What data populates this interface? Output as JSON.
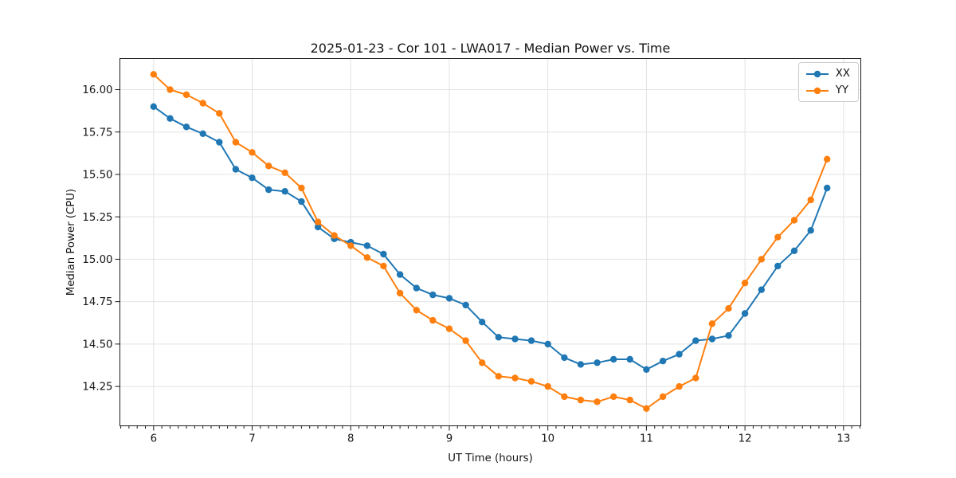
{
  "chart_data": {
    "type": "line",
    "title": "2025-01-23 - Cor 101 - LWA017 - Median Power vs. Time",
    "xlabel": "UT Time (hours)",
    "ylabel": "Median Power (CPU)",
    "xlim": [
      5.658,
      13.175
    ],
    "ylim": [
      14.018,
      16.183
    ],
    "grid": true,
    "grid_color": "#e2e2e2",
    "axis_color": "#1a1a1a",
    "legend_position": "upper-right",
    "x_ticks": [
      {
        "value": 6,
        "label": "6"
      },
      {
        "value": 7,
        "label": "7"
      },
      {
        "value": 8,
        "label": "8"
      },
      {
        "value": 9,
        "label": "9"
      },
      {
        "value": 10,
        "label": "10"
      },
      {
        "value": 11,
        "label": "11"
      },
      {
        "value": 12,
        "label": "12"
      },
      {
        "value": 13,
        "label": "13"
      }
    ],
    "x_minor_ticks_per_hour": 12,
    "y_ticks": [
      {
        "value": 14.25,
        "label": "14.25"
      },
      {
        "value": 14.5,
        "label": "14.50"
      },
      {
        "value": 14.75,
        "label": "14.75"
      },
      {
        "value": 15.0,
        "label": "15.00"
      },
      {
        "value": 15.25,
        "label": "15.25"
      },
      {
        "value": 15.5,
        "label": "15.50"
      },
      {
        "value": 15.75,
        "label": "15.75"
      },
      {
        "value": 16.0,
        "label": "16.00"
      }
    ],
    "x": [
      6.0,
      6.167,
      6.333,
      6.5,
      6.667,
      6.833,
      7.0,
      7.167,
      7.333,
      7.5,
      7.667,
      7.833,
      8.0,
      8.167,
      8.333,
      8.5,
      8.667,
      8.833,
      9.0,
      9.167,
      9.333,
      9.5,
      9.667,
      9.833,
      10.0,
      10.167,
      10.333,
      10.5,
      10.667,
      10.833,
      11.0,
      11.167,
      11.333,
      11.5,
      11.667,
      11.833,
      12.0,
      12.167,
      12.333,
      12.5,
      12.667,
      12.833
    ],
    "series": [
      {
        "name": "XX",
        "color": "#1f77b4",
        "marker": "circle",
        "values": [
          15.9,
          15.83,
          15.78,
          15.74,
          15.69,
          15.53,
          15.48,
          15.41,
          15.4,
          15.34,
          15.19,
          15.12,
          15.1,
          15.08,
          15.03,
          14.91,
          14.83,
          14.79,
          14.77,
          14.73,
          14.63,
          14.54,
          14.53,
          14.52,
          14.5,
          14.42,
          14.38,
          14.39,
          14.41,
          14.41,
          14.35,
          14.4,
          14.44,
          14.52,
          14.53,
          14.55,
          14.68,
          14.82,
          14.96,
          15.05,
          15.17,
          15.42
        ]
      },
      {
        "name": "YY",
        "color": "#ff7f0e",
        "marker": "circle",
        "values": [
          16.09,
          16.0,
          15.97,
          15.92,
          15.86,
          15.69,
          15.63,
          15.55,
          15.51,
          15.42,
          15.22,
          15.14,
          15.08,
          15.01,
          14.96,
          14.8,
          14.7,
          14.64,
          14.59,
          14.52,
          14.39,
          14.31,
          14.3,
          14.28,
          14.25,
          14.19,
          14.17,
          14.16,
          14.19,
          14.17,
          14.12,
          14.19,
          14.25,
          14.3,
          14.62,
          14.71,
          14.86,
          15.0,
          15.13,
          15.23,
          15.35,
          15.59
        ]
      }
    ],
    "legend_entries": [
      "XX",
      "YY"
    ]
  }
}
